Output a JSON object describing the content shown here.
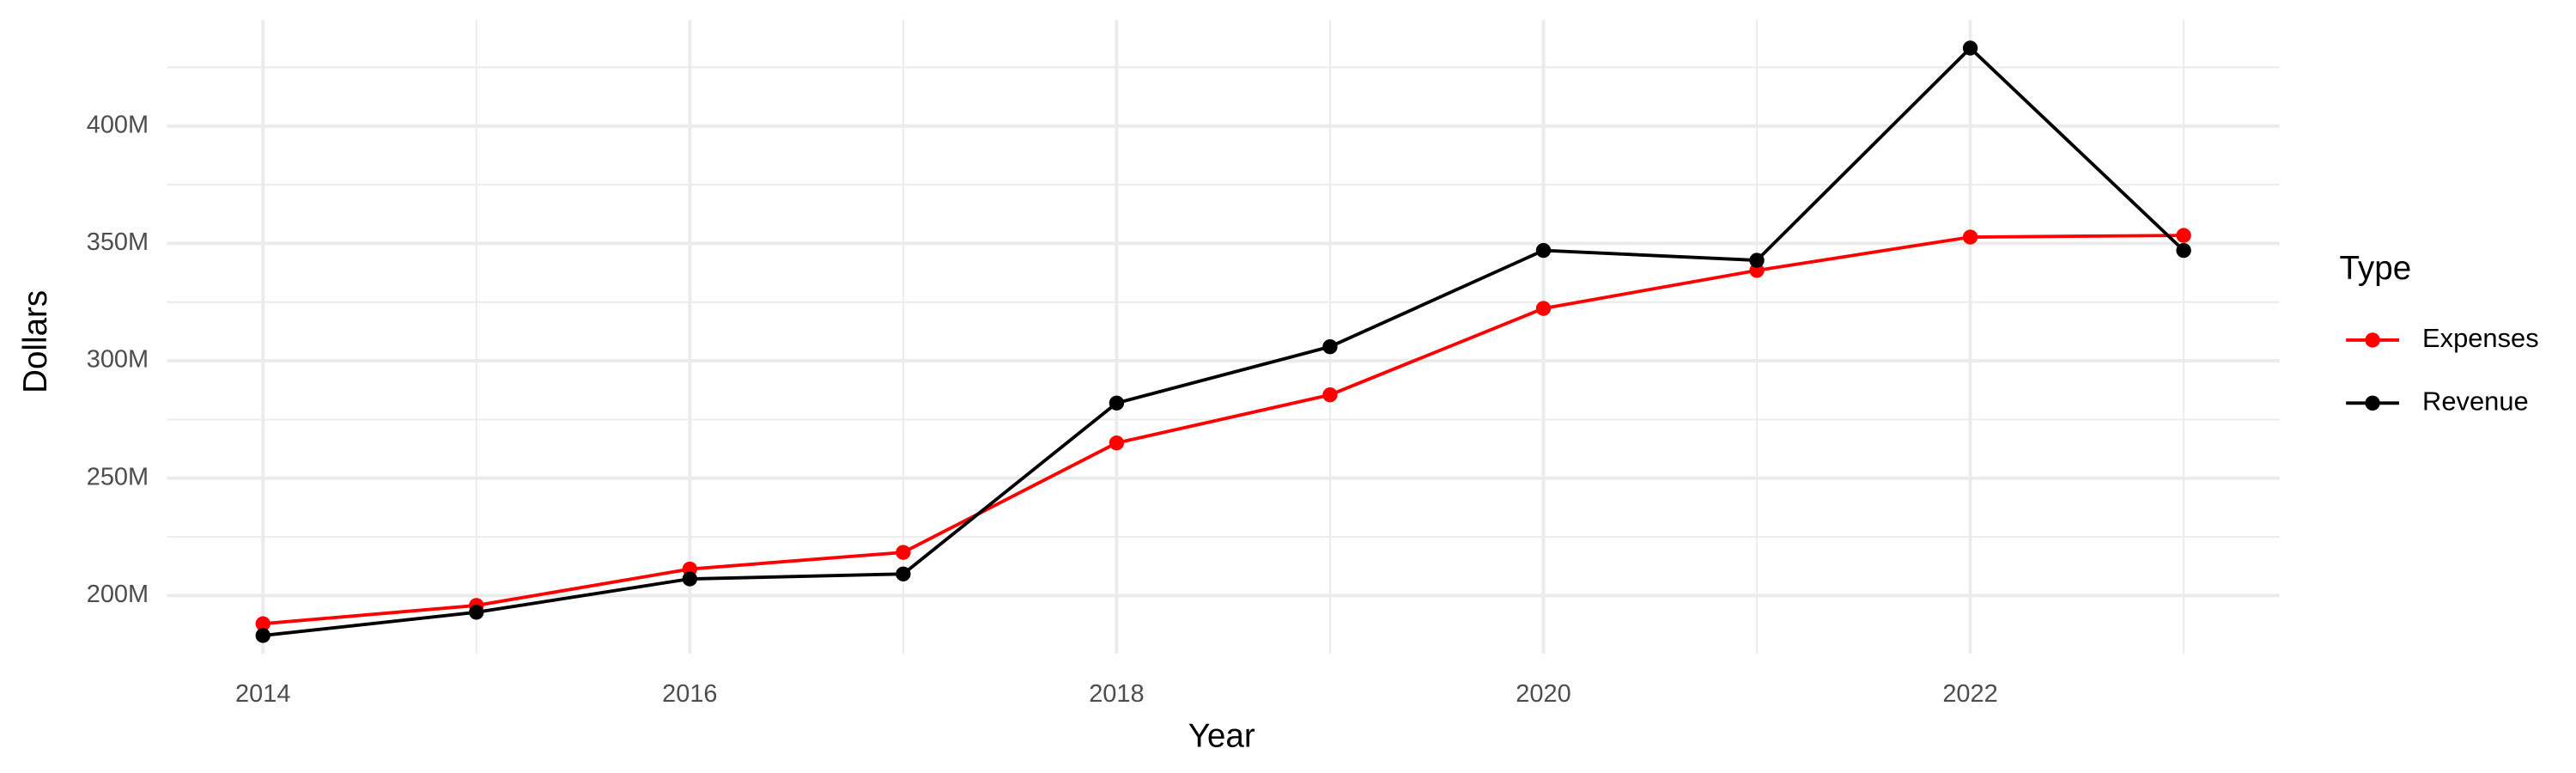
{
  "chart_data": {
    "type": "line",
    "x_label": "Year",
    "y_label": "Dollars",
    "legend_title": "Type",
    "x": [
      2014,
      2015,
      2016,
      2017,
      2018,
      2019,
      2020,
      2021,
      2022,
      2023
    ],
    "series": [
      {
        "name": "Expenses",
        "color": "#ff0000",
        "values": [
          188000000,
          195800000,
          211300000,
          218400000,
          265000000,
          285500000,
          322300000,
          338500000,
          352700000,
          353400000
        ]
      },
      {
        "name": "Revenue",
        "color": "#000000",
        "values": [
          183000000,
          192900000,
          207100000,
          209200000,
          282000000,
          306000000,
          347000000,
          342800000,
          433200000,
          347000000
        ]
      }
    ],
    "xlim": [
      2013.55,
      2023.45
    ],
    "xticks": [
      2014,
      2016,
      2018,
      2020,
      2022
    ],
    "ylim": [
      175300000,
      445200000
    ],
    "yticks": [
      {
        "value": 200000000,
        "label": "200M"
      },
      {
        "value": 250000000,
        "label": "250M"
      },
      {
        "value": 300000000,
        "label": "300M"
      },
      {
        "value": 350000000,
        "label": "350M"
      },
      {
        "value": 400000000,
        "label": "400M"
      }
    ],
    "grid": true,
    "legend_position": "right"
  }
}
